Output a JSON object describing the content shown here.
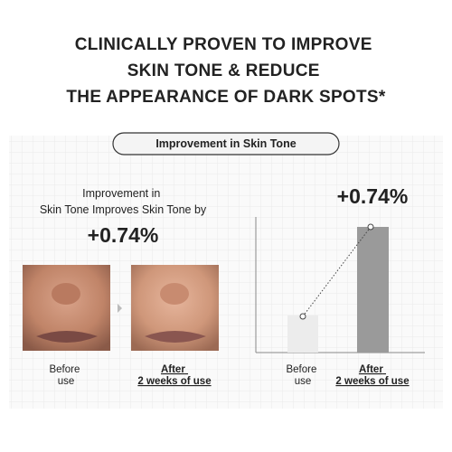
{
  "header": {
    "title": [
      "CLINICALLY PROVEN TO IMPROVE",
      "SKIN TONE & REDUCE",
      "THE APPEARANCE OF DARK SPOTS*"
    ]
  },
  "section_label": "Improvement in Skin Tone",
  "left": {
    "caption": [
      "Improvement in",
      "Skin Tone Improves Skin Tone by"
    ],
    "result": "+0.74%",
    "before_label": [
      "Before",
      "use"
    ],
    "after_label": [
      "After",
      "2 weeks of use"
    ]
  },
  "right": {
    "result": "+0.74%",
    "before_label": [
      "Before",
      "use"
    ],
    "after_label": [
      "After",
      "2 weeks of use"
    ]
  }
}
